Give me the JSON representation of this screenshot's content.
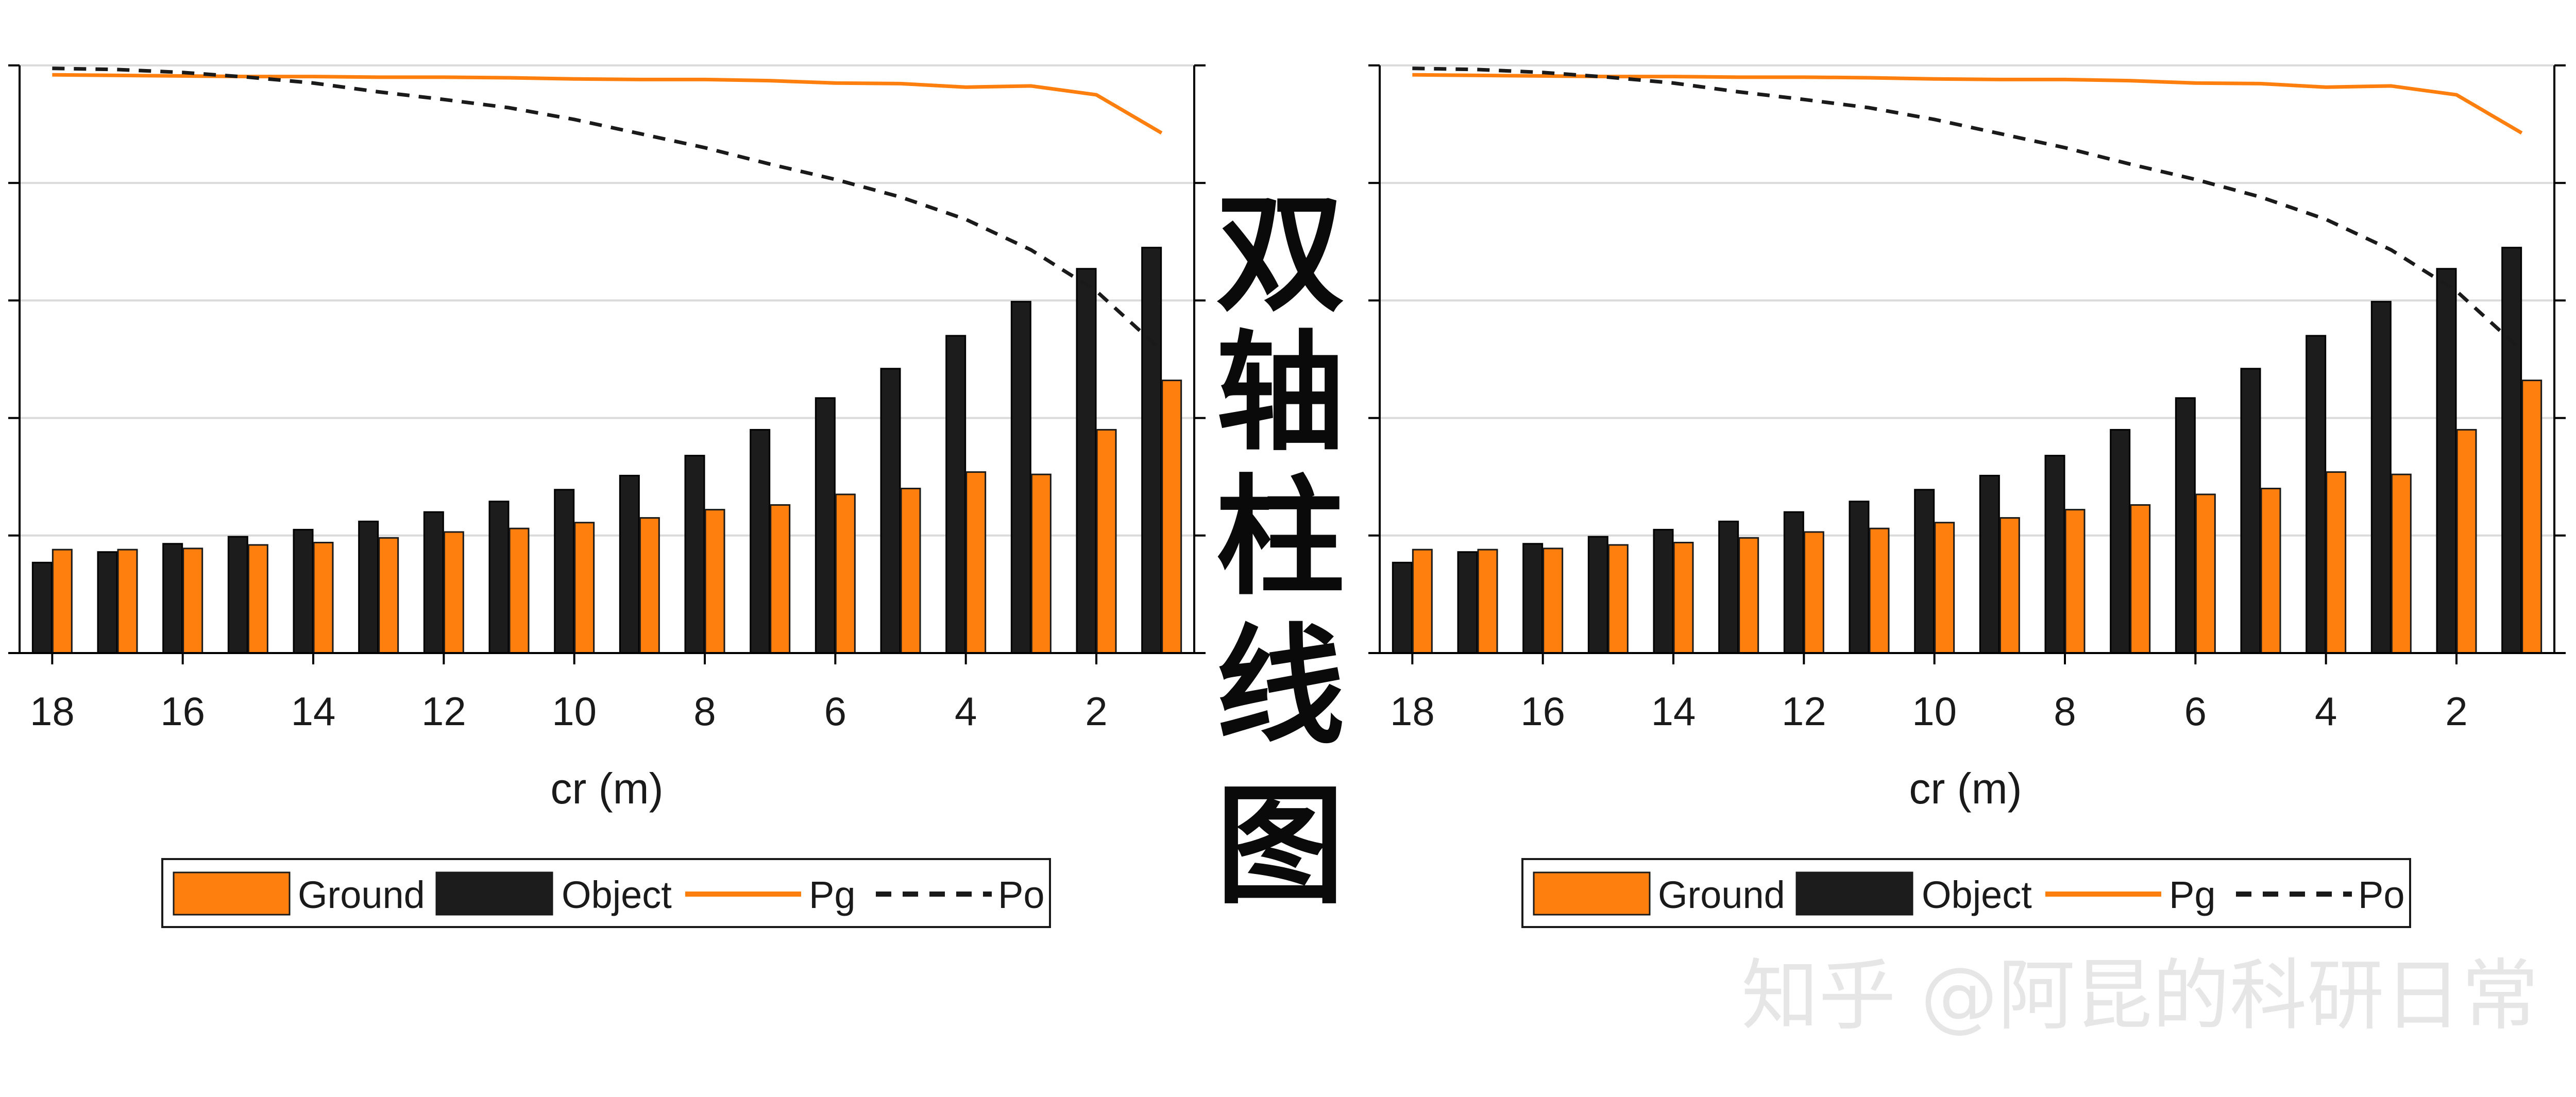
{
  "colors": {
    "ground": "#ff7f0e",
    "object": "#1c1c1c",
    "pg": "#ff7f0e",
    "po": "#1a1a1a",
    "grid": "#dadada",
    "axis": "#000000"
  },
  "calligraphy": [
    "双",
    "轴",
    "柱",
    "线",
    "图"
  ],
  "watermark": "知乎 @阿昆的科研日常",
  "chart_data": [
    {
      "type": "bar",
      "xlabel": "cr (m)",
      "xticks": [
        18,
        16,
        14,
        12,
        10,
        8,
        6,
        4,
        2
      ],
      "x_direction": "decreasing",
      "categories": [
        18,
        17,
        16,
        15,
        14,
        13,
        12,
        11,
        10,
        9,
        8,
        7,
        6,
        5,
        4,
        3,
        2,
        1
      ],
      "series": [
        {
          "name": "Object",
          "kind": "bar",
          "axis": "left",
          "values": [
            0.77,
            0.86,
            0.93,
            0.99,
            1.05,
            1.12,
            1.2,
            1.29,
            1.39,
            1.51,
            1.68,
            1.9,
            2.17,
            2.42,
            2.7,
            2.99,
            3.27,
            3.45
          ]
        },
        {
          "name": "Ground",
          "kind": "bar",
          "axis": "left",
          "values": [
            0.88,
            0.88,
            0.89,
            0.92,
            0.94,
            0.98,
            1.03,
            1.06,
            1.11,
            1.15,
            1.22,
            1.26,
            1.35,
            1.4,
            1.54,
            1.52,
            1.9,
            2.32
          ]
        },
        {
          "name": "Pg",
          "kind": "line",
          "axis": "right",
          "style": "solid",
          "values": [
            0.984,
            0.983,
            0.982,
            0.981,
            0.981,
            0.98,
            0.98,
            0.979,
            0.977,
            0.976,
            0.976,
            0.974,
            0.97,
            0.969,
            0.963,
            0.965,
            0.95,
            0.885
          ]
        },
        {
          "name": "Po",
          "kind": "line",
          "axis": "right",
          "style": "dashed",
          "values": [
            0.995,
            0.993,
            0.988,
            0.98,
            0.97,
            0.955,
            0.942,
            0.928,
            0.908,
            0.884,
            0.86,
            0.832,
            0.806,
            0.776,
            0.738,
            0.686,
            0.616,
            0.515
          ]
        }
      ],
      "ylim_left": [
        0,
        5
      ],
      "ylim_right": [
        0,
        1
      ],
      "grid": "horizontal",
      "legend": {
        "placement": "bottom",
        "entries": [
          "Ground",
          "Object",
          "Pg",
          "Po"
        ]
      }
    },
    {
      "type": "bar",
      "xlabel": "cr (m)",
      "xticks": [
        18,
        16,
        14,
        12,
        10,
        8,
        6,
        4,
        2
      ],
      "x_direction": "decreasing",
      "categories": [
        18,
        17,
        16,
        15,
        14,
        13,
        12,
        11,
        10,
        9,
        8,
        7,
        6,
        5,
        4,
        3,
        2,
        1
      ],
      "series": [
        {
          "name": "Object",
          "kind": "bar",
          "axis": "left",
          "values": [
            0.77,
            0.86,
            0.93,
            0.99,
            1.05,
            1.12,
            1.2,
            1.29,
            1.39,
            1.51,
            1.68,
            1.9,
            2.17,
            2.42,
            2.7,
            2.99,
            3.27,
            3.45
          ]
        },
        {
          "name": "Ground",
          "kind": "bar",
          "axis": "left",
          "values": [
            0.88,
            0.88,
            0.89,
            0.92,
            0.94,
            0.98,
            1.03,
            1.06,
            1.11,
            1.15,
            1.22,
            1.26,
            1.35,
            1.4,
            1.54,
            1.52,
            1.9,
            2.32
          ]
        },
        {
          "name": "Pg",
          "kind": "line",
          "axis": "right",
          "style": "solid",
          "values": [
            0.984,
            0.983,
            0.982,
            0.981,
            0.981,
            0.98,
            0.98,
            0.979,
            0.977,
            0.976,
            0.976,
            0.974,
            0.97,
            0.969,
            0.963,
            0.965,
            0.95,
            0.885
          ]
        },
        {
          "name": "Po",
          "kind": "line",
          "axis": "right",
          "style": "dashed",
          "values": [
            0.995,
            0.993,
            0.988,
            0.98,
            0.97,
            0.955,
            0.942,
            0.928,
            0.908,
            0.884,
            0.86,
            0.832,
            0.806,
            0.776,
            0.738,
            0.686,
            0.616,
            0.515
          ]
        }
      ],
      "ylim_left": [
        0,
        5
      ],
      "ylim_right": [
        0,
        1
      ],
      "grid": "horizontal",
      "legend": {
        "placement": "bottom",
        "entries": [
          "Ground",
          "Object",
          "Pg",
          "Po"
        ]
      }
    }
  ]
}
